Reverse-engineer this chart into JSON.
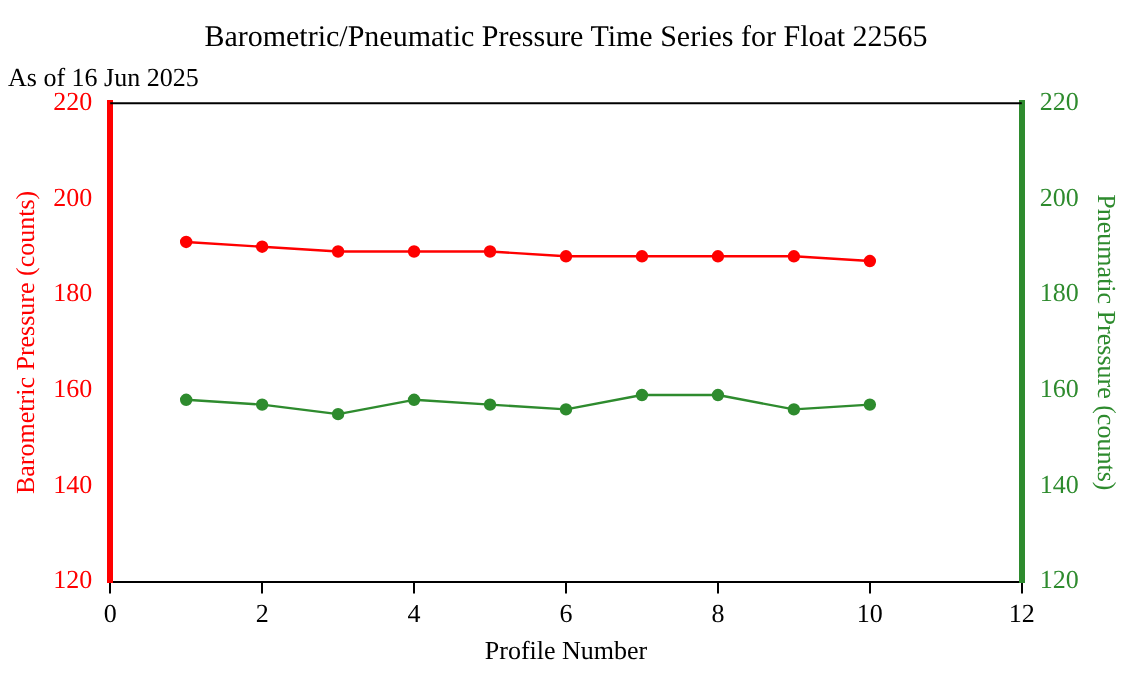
{
  "chart_data": {
    "type": "line",
    "title": "Barometric/Pneumatic Pressure Time Series for Float 22565",
    "subtitle": "As of 16 Jun 2025",
    "xlabel": "Profile Number",
    "ylabel": "Barometric Pressure (counts)",
    "y2label": "Pneumatic Pressure (counts)",
    "x": [
      1,
      2,
      3,
      4,
      5,
      6,
      7,
      8,
      9,
      10
    ],
    "series": [
      {
        "color": "#ff0000",
        "values": [
          191,
          190,
          189,
          189,
          189,
          188,
          188,
          188,
          188,
          187
        ]
      },
      {
        "color": "#2e8b2e",
        "axis": "y2",
        "values": [
          158,
          157,
          155,
          158,
          157,
          156,
          159,
          159,
          156,
          157
        ]
      }
    ],
    "xlim": [
      0,
      12
    ],
    "xticks": [
      0,
      2,
      4,
      6,
      8,
      10,
      12
    ],
    "ylim": [
      120,
      220
    ],
    "yticks": [
      120,
      140,
      160,
      180,
      200,
      220
    ],
    "y2lim": [
      120,
      220
    ],
    "y2ticks": [
      120,
      140,
      160,
      180,
      200,
      220
    ],
    "grid": false,
    "legend": false,
    "marker": "circle",
    "line_style": "solid"
  }
}
